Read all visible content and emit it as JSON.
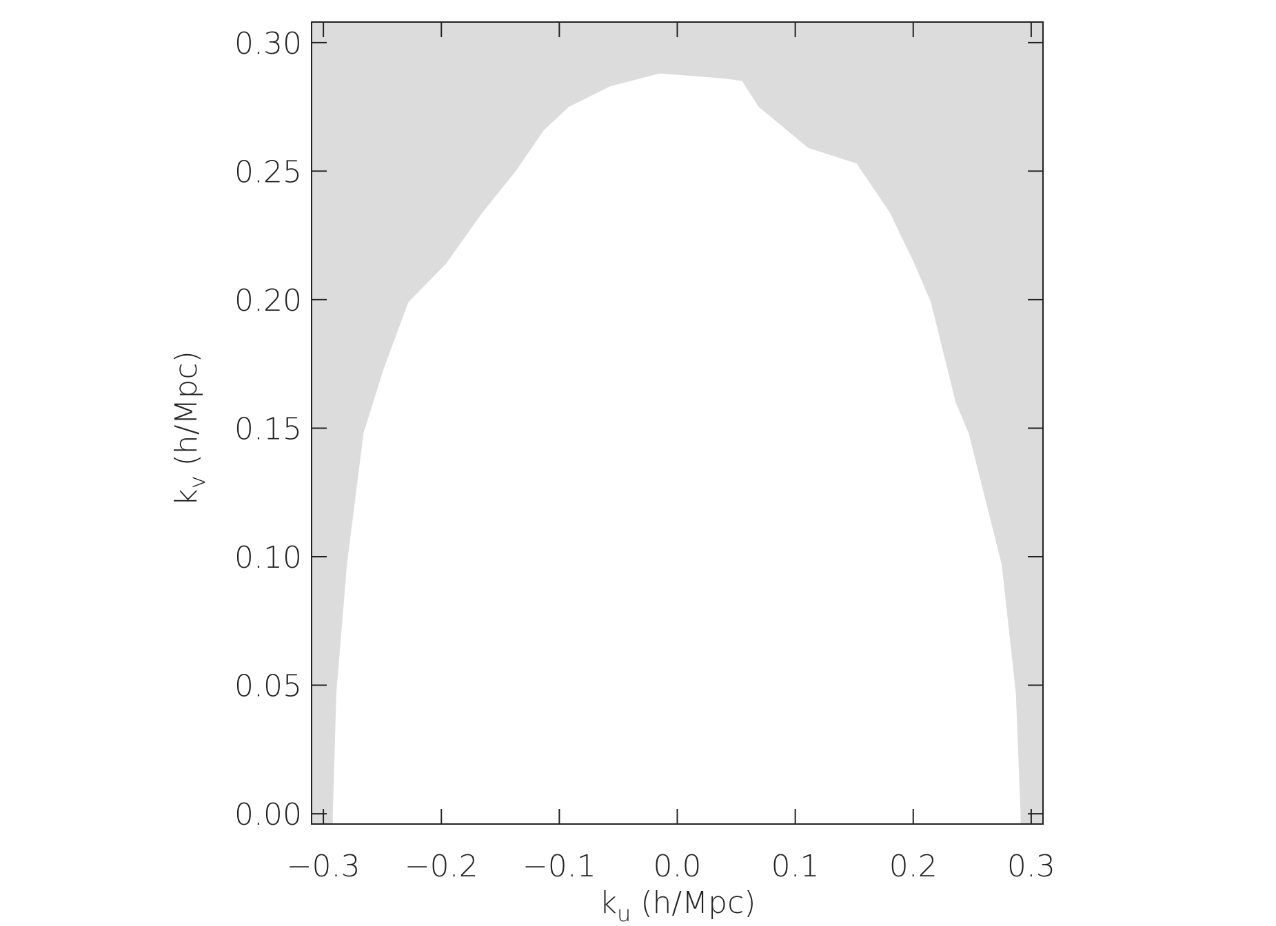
{
  "chart_data": {
    "type": "area",
    "x_label_symbol": "k",
    "x_label_subscript": "u",
    "x_label_unit": "(h/Mpc)",
    "y_label_symbol": "k",
    "y_label_subscript": "v",
    "y_label_unit": "(h/Mpc)",
    "x": [
      -0.292,
      -0.289,
      -0.28,
      -0.266,
      -0.249,
      -0.228,
      -0.196,
      -0.165,
      -0.137,
      -0.113,
      -0.092,
      -0.057,
      -0.015,
      0.041,
      0.055,
      0.069,
      0.111,
      0.152,
      0.18,
      0.201,
      0.215,
      0.236,
      0.247,
      0.275,
      0.287,
      0.291
    ],
    "values": [
      0.0,
      0.047,
      0.097,
      0.148,
      0.173,
      0.199,
      0.214,
      0.234,
      0.25,
      0.266,
      0.275,
      0.283,
      0.288,
      0.286,
      0.285,
      0.275,
      0.259,
      0.253,
      0.234,
      0.214,
      0.199,
      0.16,
      0.148,
      0.097,
      0.047,
      0.0
    ],
    "color": "#ffffff",
    "background_color": "#dcdcdc",
    "xlim": [
      -0.31,
      0.31
    ],
    "ylim": [
      -0.004,
      0.308
    ],
    "xticks": [
      {
        "value": -0.3,
        "label": "−0.3"
      },
      {
        "value": -0.2,
        "label": "−0.2"
      },
      {
        "value": -0.1,
        "label": "−0.1"
      },
      {
        "value": 0,
        "label": "0.0"
      },
      0.1,
      0.2,
      0.3
    ],
    "yticks": [
      {
        "value": 0,
        "label": "0.00"
      },
      0.05,
      {
        "value": 0.1,
        "label": "0.10"
      },
      0.15,
      {
        "value": 0.2,
        "label": "0.20"
      },
      0.25,
      {
        "value": 0.3,
        "label": "0.30"
      }
    ]
  }
}
